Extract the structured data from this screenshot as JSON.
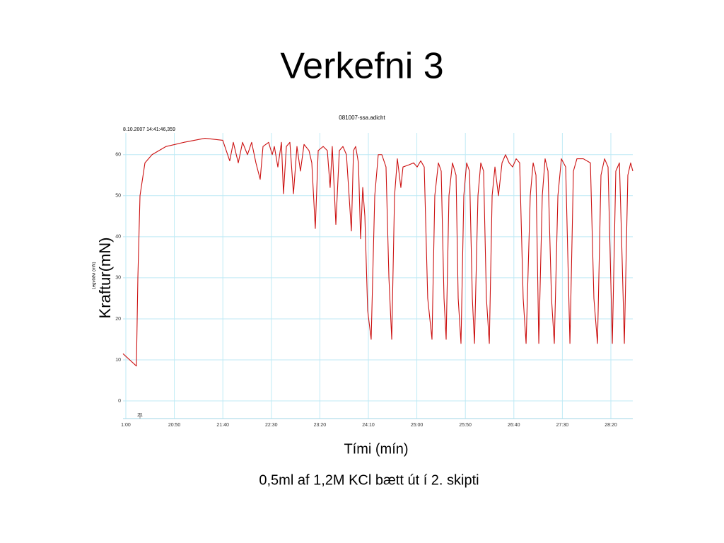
{
  "title": "Verkefni 3",
  "chart_data": {
    "type": "line",
    "title": "081007-ssa.adicht",
    "timestamp": "8.10.2007 14:41:46,359",
    "ylabel": "Legvöðvi (mN)",
    "ylabel_overlay": "Kraftur(mN)",
    "xlabel": "Tími (mín)",
    "caption": "0,5ml af 1,2M KCl bætt út í 2. skipti",
    "annotations": [
      {
        "x": 1214.6,
        "text": "21"
      }
    ],
    "xlim": [
      1197.1,
      1722.6
    ],
    "ylim": [
      -4.3,
      65.3
    ],
    "xticks": [
      {
        "value": 1200,
        "label": "1:00"
      },
      {
        "value": 1250,
        "label": "20:50"
      },
      {
        "value": 1300,
        "label": "21:40"
      },
      {
        "value": 1350,
        "label": "22:30"
      },
      {
        "value": 1400,
        "label": "23:20"
      },
      {
        "value": 1450,
        "label": "24:10"
      },
      {
        "value": 1500,
        "label": "25:00"
      },
      {
        "value": 1550,
        "label": "25:50"
      },
      {
        "value": 1600,
        "label": "26:40"
      },
      {
        "value": 1650,
        "label": "27:30"
      },
      {
        "value": 1700,
        "label": "28:20"
      }
    ],
    "yticks": [
      0,
      10,
      20,
      30,
      40,
      50,
      60
    ],
    "grid": true,
    "x": [
      1197.1,
      1210.9,
      1212.4,
      1214.6,
      1219.7,
      1227.0,
      1241.5,
      1259.8,
      1281.6,
      1299.9,
      1307.1,
      1310.8,
      1315.9,
      1320.3,
      1325.4,
      1329.7,
      1334.1,
      1338.5,
      1341.4,
      1347.2,
      1350.9,
      1353.1,
      1356.7,
      1360.4,
      1362.5,
      1365.5,
      1369.1,
      1372.8,
      1376.4,
      1380.0,
      1383.7,
      1388.8,
      1391.7,
      1395.3,
      1398.3,
      1403.4,
      1407.7,
      1410.6,
      1412.8,
      1416.5,
      1420.1,
      1423.8,
      1427.4,
      1432.5,
      1434.7,
      1436.9,
      1439.8,
      1442.0,
      1444.2,
      1446.4,
      1449.3,
      1452.9,
      1456.6,
      1460.2,
      1463.9,
      1468.2,
      1471.2,
      1474.1,
      1477.0,
      1479.9,
      1483.5,
      1485.7,
      1491.6,
      1496.7,
      1500.3,
      1504.0,
      1507.6,
      1511.2,
      1515.6,
      1518.5,
      1522.2,
      1525.1,
      1528.0,
      1530.2,
      1533.1,
      1536.7,
      1540.4,
      1542.6,
      1545.5,
      1548.4,
      1551.3,
      1554.3,
      1557.2,
      1559.4,
      1563.0,
      1565.9,
      1568.8,
      1571.7,
      1574.7,
      1577.6,
      1580.5,
      1584.1,
      1587.8,
      1591.4,
      1595.1,
      1598.7,
      1602.4,
      1606.0,
      1609.6,
      1612.6,
      1616.9,
      1619.9,
      1622.8,
      1625.7,
      1629.3,
      1632.2,
      1635.2,
      1638.8,
      1641.7,
      1645.4,
      1649.0,
      1653.4,
      1657.8,
      1661.4,
      1665.0,
      1671.6,
      1678.9,
      1682.5,
      1686.2,
      1689.8,
      1693.5,
      1697.1,
      1701.5,
      1705.1,
      1708.8,
      1711.0,
      1713.9,
      1717.5,
      1720.4,
      1722.6
    ],
    "series": [
      {
        "name": "Legvöðvi",
        "color": "#cc1111",
        "values": [
          11.5,
          8.5,
          30,
          50,
          58,
          60,
          62,
          63,
          64,
          63.5,
          58.5,
          63,
          58,
          63,
          60,
          63,
          58,
          54,
          62,
          63,
          60,
          62,
          57,
          63,
          50.5,
          62,
          63,
          50.5,
          62,
          56,
          62.5,
          61,
          58,
          42,
          61,
          62,
          61,
          52,
          62,
          43,
          61,
          62,
          60,
          41.4,
          61,
          62,
          58,
          39.5,
          52,
          45,
          22,
          15,
          50,
          60,
          60,
          57,
          30,
          15,
          50,
          59,
          52,
          57,
          57.5,
          58,
          57,
          58.5,
          57,
          25,
          15,
          50,
          58,
          56,
          25,
          15,
          50,
          58,
          55,
          25,
          14,
          50,
          58,
          56,
          25,
          14,
          50,
          58,
          56,
          25,
          14,
          50,
          57,
          50,
          58,
          60,
          58,
          57,
          59,
          58,
          25,
          14,
          50,
          58,
          55,
          14,
          50,
          59,
          56,
          25,
          14,
          50,
          59,
          57,
          14,
          56,
          59,
          59,
          58,
          25,
          14,
          55,
          59,
          57,
          14,
          56,
          58,
          40,
          14,
          55,
          58,
          56
        ]
      }
    ]
  }
}
